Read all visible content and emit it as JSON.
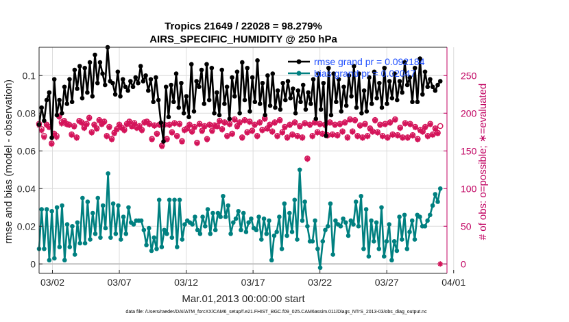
{
  "chart_data": {
    "type": "line",
    "title_line1": "Tropics 21649 / 22028 = 98.279%",
    "title_line2": "AIRS_SPECIFIC_HUMIDITY @ 250 hPa",
    "xlabel": "Mar.01,2013 00:00:00 start",
    "ylabel_left": "rmse and bias (model - observation)",
    "ylabel_right": "# of obs: o=possible; ∗=evaluated",
    "footer": "data file: /Users/raeder/DAI/ATM_forcXX/CAM6_setup/f.e21.FHIST_BGC.f09_025.CAM6assim.011/Diags_NTrS_2013-03/obs_diag_output.nc",
    "xlim": [
      0,
      30.5
    ],
    "ylim_left": [
      -0.005,
      0.115
    ],
    "ylim_right": [
      -12.5,
      287.5
    ],
    "x_ticks": [
      1,
      6,
      11,
      16,
      21,
      26,
      31
    ],
    "x_tick_labels": [
      "03/02",
      "03/07",
      "03/12",
      "03/17",
      "03/22",
      "03/27",
      "04/01"
    ],
    "y_left_ticks": [
      0,
      0.02,
      0.04,
      0.06,
      0.08,
      0.1
    ],
    "y_left_tick_labels": [
      "0",
      "0.02",
      "0.04",
      "0.06",
      "0.08",
      "0.1"
    ],
    "y_right_ticks": [
      0,
      50,
      100,
      150,
      200,
      250
    ],
    "y_right_tick_labels": [
      "0",
      "50",
      "100",
      "150",
      "200",
      "250"
    ],
    "grid": true,
    "legend_position": "top-right",
    "colors": {
      "rmse": "#000000",
      "bias": "#008080",
      "obs": "#d4145a",
      "zero_line": "#c0c0c0",
      "right_axis": "#c00060",
      "legend_text": "#1f4fff"
    },
    "series": [
      {
        "name": "rmse grand pr = 0.092184",
        "axis": "left",
        "color": "#000000",
        "values": [
          0.074,
          0.083,
          0.076,
          0.087,
          0.091,
          0.067,
          0.098,
          0.079,
          0.087,
          0.08,
          0.094,
          0.085,
          0.098,
          0.086,
          0.103,
          0.093,
          0.105,
          0.088,
          0.104,
          0.091,
          0.107,
          0.089,
          0.111,
          0.096,
          0.107,
          0.101,
          0.095,
          0.115,
          0.097,
          0.096,
          0.09,
          0.102,
          0.089,
          0.098,
          0.094,
          0.092,
          0.097,
          0.094,
          0.099,
          0.096,
          0.105,
          0.097,
          0.1,
          0.092,
          0.098,
          0.086,
          0.099,
          0.087,
          0.075,
          0.065,
          0.094,
          0.078,
          0.095,
          0.086,
          0.101,
          0.083,
          0.096,
          0.08,
          0.089,
          0.078,
          0.106,
          0.081,
          0.097,
          0.094,
          0.103,
          0.085,
          0.106,
          0.087,
          0.104,
          0.08,
          0.091,
          0.079,
          0.103,
          0.085,
          0.094,
          0.077,
          0.099,
          0.089,
          0.102,
          0.08,
          0.107,
          0.087,
          0.104,
          0.081,
          0.099,
          0.086,
          0.108,
          0.085,
          0.096,
          0.079,
          0.1,
          0.084,
          0.101,
          0.083,
          0.092,
          0.082,
          0.096,
          0.087,
          0.097,
          0.088,
          0.093,
          0.08,
          0.092,
          0.086,
          0.095,
          0.082,
          0.091,
          0.085,
          0.098,
          0.077,
          0.101,
          0.082,
          0.096,
          0.068,
          0.104,
          0.079,
          0.101,
          0.086,
          0.098,
          0.081,
          0.094,
          0.084,
          0.1,
          0.089,
          0.105,
          0.083,
          0.101,
          0.08,
          0.092,
          0.081,
          0.099,
          0.085,
          0.102,
          0.088,
          0.096,
          0.083,
          0.104,
          0.085,
          0.097,
          0.088,
          0.101,
          0.087,
          0.097,
          0.091,
          0.107,
          0.095,
          0.099,
          0.086,
          0.104,
          0.086,
          0.109,
          0.09,
          0.102,
          0.094,
          0.098,
          0.094,
          0.092,
          0.095,
          0.097
        ],
        "grand_label": "0.092184"
      },
      {
        "name": "bias grand pr = 0.02047",
        "axis": "left",
        "color": "#008080",
        "values": [
          0.008,
          0.029,
          0.008,
          0.029,
          0.002,
          0.028,
          0.003,
          0.03,
          0.009,
          0.031,
          0.002,
          0.021,
          0.009,
          0.02,
          0.005,
          0.022,
          0.011,
          0.035,
          0.011,
          0.033,
          0.013,
          0.027,
          0.016,
          0.035,
          0.014,
          0.031,
          0.019,
          0.048,
          0.014,
          0.032,
          0.016,
          0.031,
          0.013,
          0.025,
          0.016,
          0.03,
          0.022,
          0.021,
          0.023,
          0.023,
          0.023,
          0.018,
          0.01,
          0.019,
          0.007,
          0.014,
          0.008,
          0.034,
          0.009,
          0.018,
          0.016,
          0.034,
          0.014,
          0.034,
          0.009,
          0.034,
          0.013,
          0.021,
          0.023,
          0.022,
          0.021,
          0.025,
          0.018,
          0.016,
          0.025,
          0.02,
          0.029,
          0.016,
          0.027,
          0.018,
          0.027,
          0.025,
          0.036,
          0.025,
          0.031,
          0.016,
          0.022,
          0.024,
          0.028,
          0.018,
          0.027,
          0.017,
          0.022,
          0.024,
          0.019,
          0.018,
          0.025,
          0.013,
          0.024,
          0.016,
          0.023,
          0.002,
          0.015,
          0.017,
          0.025,
          0.008,
          0.032,
          0.015,
          0.027,
          0.017,
          0.034,
          0.013,
          0.05,
          0.023,
          0.033,
          0.02,
          0.012,
          0.012,
          0.023,
          0.008,
          -0.002,
          0.012,
          0.018,
          0.02,
          0.032,
          0.005,
          0.023,
          0.021,
          0.02,
          0.024,
          0.022,
          0.015,
          0.023,
          0.021,
          0.033,
          0.02,
          0.036,
          0.008,
          0.029,
          0.004,
          0.023,
          0.012,
          0.022,
          0.008,
          0.03,
          0.004,
          0.012,
          0.021,
          0.002,
          0.012,
          0.007,
          0.025,
          0.013,
          0.026,
          0.008,
          0.017,
          0.023,
          0.013,
          0.026,
          0.025,
          0.02,
          0.02,
          0.023,
          0.026,
          0.031,
          0.037,
          0.033,
          0.04
        ],
        "grand_label": "0.02047"
      },
      {
        "name": "obs possible (o)",
        "axis": "right",
        "color": "#d4145a",
        "marker": "circle",
        "values": [
          186,
          179,
          170,
          185,
          182,
          160,
          173,
          170,
          196,
          188,
          190,
          186,
          185,
          172,
          183,
          168,
          190,
          188,
          181,
          186,
          194,
          175,
          185,
          180,
          191,
          186,
          189,
          170,
          182,
          166,
          174,
          179,
          185,
          181,
          178,
          186,
          189,
          183,
          187,
          181,
          183,
          178,
          188,
          189,
          186,
          166,
          184,
          173,
          185,
          157,
          185,
          166,
          185,
          175,
          187,
          170,
          186,
          163,
          178,
          180,
          185,
          176,
          182,
          161,
          186,
          177,
          183,
          166,
          185,
          177,
          184,
          183,
          190,
          179,
          188,
          170,
          186,
          173,
          192,
          183,
          188,
          168,
          191,
          175,
          189,
          177,
          185,
          170,
          188,
          178,
          193,
          180,
          185,
          176,
          188,
          170,
          191,
          175,
          182,
          168,
          185,
          172,
          188,
          170,
          183,
          168,
          187,
          140,
          185,
          170,
          188,
          175,
          186,
          173,
          185,
          171,
          188,
          172,
          185,
          171,
          186,
          176,
          188,
          168,
          192,
          176,
          191,
          170,
          184,
          168,
          186,
          170,
          180,
          176,
          191,
          175,
          185,
          170,
          186,
          168,
          188,
          172,
          192,
          171,
          181,
          168,
          187,
          168,
          186,
          171,
          182,
          166,
          178,
          176,
          182,
          170,
          186,
          172,
          180,
          174,
          183
        ],
        "note": "possible"
      },
      {
        "name": "obs evaluated (*)",
        "axis": "right",
        "color": "#d4145a",
        "marker": "asterisk",
        "values": [
          184,
          177,
          168,
          184,
          181,
          159,
          172,
          168,
          195,
          186,
          189,
          185,
          184,
          171,
          182,
          167,
          189,
          187,
          180,
          185,
          193,
          174,
          184,
          179,
          190,
          185,
          188,
          169,
          181,
          165,
          173,
          178,
          184,
          180,
          177,
          185,
          188,
          182,
          186,
          180,
          182,
          177,
          187,
          188,
          185,
          165,
          183,
          172,
          184,
          156,
          184,
          165,
          184,
          174,
          186,
          169,
          185,
          162,
          177,
          179,
          184,
          175,
          181,
          160,
          185,
          176,
          182,
          165,
          184,
          176,
          183,
          182,
          189,
          178,
          187,
          169,
          185,
          172,
          191,
          182,
          187,
          167,
          190,
          174,
          188,
          176,
          184,
          169,
          187,
          177,
          192,
          179,
          184,
          175,
          187,
          169,
          190,
          174,
          181,
          167,
          184,
          171,
          187,
          169,
          182,
          167,
          186,
          139,
          184,
          169,
          187,
          174,
          185,
          172,
          184,
          170,
          187,
          171,
          184,
          170,
          185,
          175,
          187,
          167,
          191,
          175,
          190,
          169,
          183,
          167,
          185,
          169,
          179,
          175,
          190,
          174,
          184,
          169,
          185,
          167,
          187,
          171,
          191,
          170,
          180,
          167,
          186,
          167,
          185,
          170,
          181,
          165,
          177,
          175,
          181,
          169,
          185,
          171,
          179,
          173,
          0
        ],
        "note": "evaluated"
      }
    ]
  }
}
